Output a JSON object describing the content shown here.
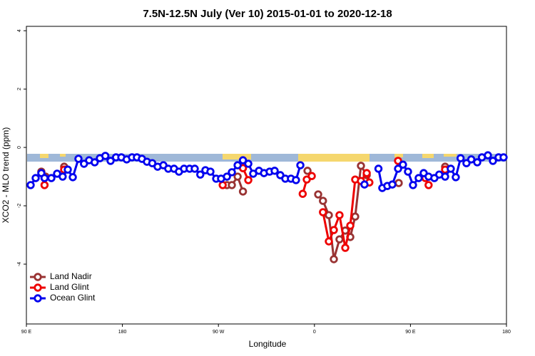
{
  "chart_data": {
    "type": "line",
    "title": "7.5N-12.5N July (Ver 10)   2015-01-01 to 2020-12-18",
    "x_label": "Longitude",
    "y_label": "XCO2 - MLO trend (ppm)",
    "xlim": [
      90,
      540
    ],
    "xticks": [
      {
        "value": 90,
        "label": "90 E"
      },
      {
        "value": 180,
        "label": "180"
      },
      {
        "value": 270,
        "label": "90 W"
      },
      {
        "value": 360,
        "label": "0"
      },
      {
        "value": 450,
        "label": "90 E"
      },
      {
        "value": 540,
        "label": "180"
      }
    ],
    "ylim": [
      -6.05,
      4.15
    ],
    "yticks": [
      -4,
      -2,
      0,
      2,
      4
    ],
    "legend": "bottomleft",
    "series": [
      {
        "name": "Land Nadir",
        "color": "#993333",
        "x": [
          104,
          108,
          null,
          125.4,
          null,
          278,
          282.6,
          288,
          293,
          null,
          353.5,
          null,
          363.5,
          368,
          373.5,
          378.2,
          383.5,
          388.9,
          393.6,
          398.2,
          403.6,
          409,
          null,
          439,
          null,
          482.5
        ],
        "values": [
          -0.83,
          -1.0,
          null,
          -0.66,
          null,
          -1.29,
          -1.29,
          -1.0,
          -1.51,
          null,
          -0.8,
          null,
          -1.61,
          -1.83,
          -2.32,
          -3.83,
          -3.15,
          -2.85,
          -3.07,
          -2.37,
          -0.63,
          -0.95,
          null,
          -1.22,
          null,
          -0.66
        ]
      },
      {
        "name": "Land Glint",
        "color": "#ee0000",
        "x": [
          107,
          null,
          125.4,
          null,
          274,
          null,
          293,
          298,
          null,
          349,
          352.8,
          357.5,
          null,
          368,
          373.5,
          378.2,
          383.5,
          388.9,
          393.6,
          398.2,
          403.6,
          409,
          411.5,
          null,
          438.4,
          null,
          464,
          467,
          null,
          482.5
        ],
        "values": [
          -1.29,
          null,
          -0.76,
          null,
          -1.29,
          null,
          -0.71,
          -1.12,
          null,
          -1.59,
          -1.1,
          -0.98,
          null,
          -2.22,
          -3.22,
          -2.83,
          -2.32,
          -3.44,
          -2.68,
          -1.1,
          -1.15,
          -0.88,
          -1.2,
          null,
          -0.46,
          null,
          -1.05,
          -1.29,
          null,
          -0.76
        ]
      },
      {
        "name": "Ocean Glint",
        "color": "#0000ee",
        "x": [
          94,
          98.7,
          104,
          107,
          113.4,
          118.8,
          124,
          128.8,
          133.5,
          138.8,
          144,
          148.8,
          154,
          158.9,
          164,
          168.9,
          174,
          179,
          184,
          189,
          193.6,
          198.3,
          203,
          208,
          213,
          218.4,
          223,
          228.4,
          233,
          237.8,
          243,
          247.8,
          253,
          257.8,
          262.5,
          267.9,
          272.5,
          278,
          282.6,
          288,
          293,
          298,
          302.6,
          308,
          312.7,
          318,
          322.7,
          328,
          332.7,
          338,
          342.7,
          346.8,
          null,
          406.9,
          null,
          420,
          423.6,
          428.3,
          433,
          438.4,
          443,
          447.7,
          452.4,
          457.7,
          462.4,
          467,
          472.4,
          477,
          482.5,
          487.8,
          492.5,
          497,
          502.5,
          507,
          512.6,
          517,
          522.6,
          527.3,
          532.6,
          537.3
        ],
        "values": [
          -1.29,
          -1.05,
          -0.88,
          -1.05,
          -1.05,
          -0.9,
          -1.0,
          -0.76,
          -1.02,
          -0.39,
          -0.56,
          -0.44,
          -0.51,
          -0.37,
          -0.29,
          -0.46,
          -0.34,
          -0.34,
          -0.41,
          -0.34,
          -0.34,
          -0.39,
          -0.49,
          -0.54,
          -0.66,
          -0.61,
          -0.73,
          -0.73,
          -0.83,
          -0.73,
          -0.73,
          -0.73,
          -0.93,
          -0.78,
          -0.83,
          -1.07,
          -1.07,
          -1.0,
          -0.85,
          -0.61,
          -0.44,
          -0.56,
          -0.9,
          -0.8,
          -0.88,
          -0.83,
          -0.8,
          -0.95,
          -1.07,
          -1.07,
          -1.12,
          -0.61,
          null,
          -1.27,
          null,
          -0.73,
          -1.39,
          -1.32,
          -1.27,
          -0.73,
          -0.59,
          -0.83,
          -1.29,
          -1.05,
          -0.88,
          -1.0,
          -1.05,
          -0.93,
          -1.0,
          -0.73,
          -1.02,
          -0.37,
          -0.54,
          -0.41,
          -0.51,
          -0.34,
          -0.27,
          -0.46,
          -0.34,
          -0.34
        ]
      }
    ]
  }
}
